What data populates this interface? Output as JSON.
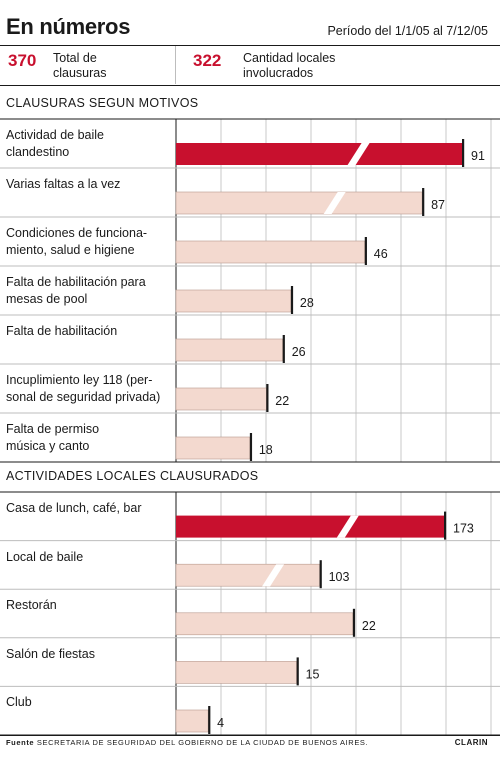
{
  "header": {
    "title": "En números",
    "period": "Período del 1/1/05 al 7/12/05"
  },
  "stats": [
    {
      "value": "370",
      "label_line1": "Total de",
      "label_line2": "clausuras"
    },
    {
      "value": "322",
      "label_line1": "Cantidad locales",
      "label_line2": "involucrados"
    }
  ],
  "footer": {
    "source_prefix": "Fuente",
    "source_text": "SECRETARIA DE SEGURIDAD DEL GOBIERNO DE LA CIUDAD DE BUENOS AIRES.",
    "brand": "CLARIN"
  },
  "colors": {
    "highlight": "#c8102e",
    "bar": "#f3d9cf",
    "grid": "#c8c8c8"
  },
  "chart_data": [
    {
      "type": "bar",
      "title": "CLAUSURAS SEGUN MOTIVOS",
      "categories": [
        [
          "Actividad de baile",
          "clandestino"
        ],
        [
          "Varias faltas a la vez"
        ],
        [
          "Condiciones de funciona-",
          "miento, salud e higiene"
        ],
        [
          "Falta de habilitación para",
          "mesas de pool"
        ],
        [
          "Falta de habilitación"
        ],
        [
          "Incuplimiento ley 118 (per-",
          "sonal de seguridad privada)"
        ],
        [
          "Falta de permiso",
          "música y canto"
        ]
      ],
      "values": [
        91,
        87,
        46,
        28,
        26,
        22,
        18
      ],
      "highlight": [
        0
      ],
      "broken": [
        0,
        1
      ]
    },
    {
      "type": "bar",
      "title": "ACTIVIDADES LOCALES CLAUSURADOS",
      "categories": [
        [
          "Casa de lunch, café, bar"
        ],
        [
          "Local de baile"
        ],
        [
          "Restorán"
        ],
        [
          "Salón de fiestas"
        ],
        [
          "Club"
        ]
      ],
      "values": [
        173,
        103,
        22,
        15,
        4
      ],
      "highlight": [
        0
      ],
      "broken": [
        0,
        1
      ]
    }
  ]
}
